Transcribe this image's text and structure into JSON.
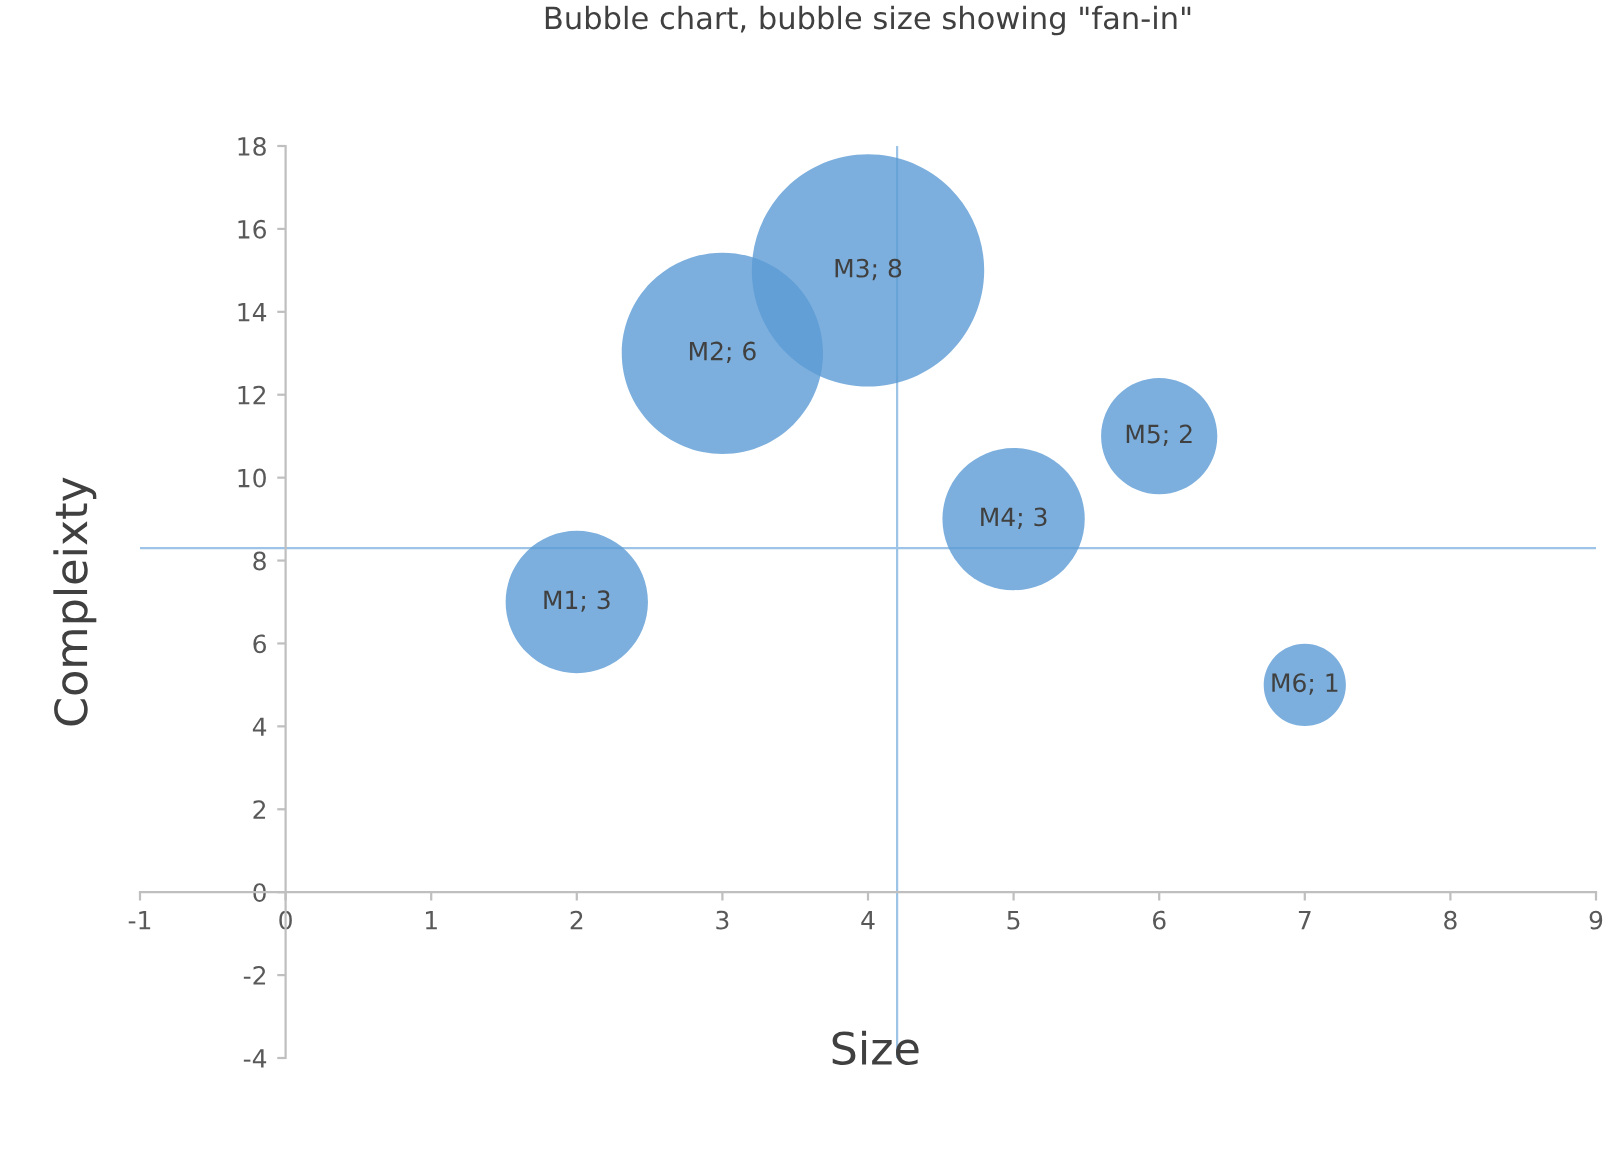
{
  "chart_data": {
    "type": "bubble",
    "title": "Bubble chart, bubble size showing \"fan-in\"",
    "xlabel": "Size",
    "ylabel": "Compleixty",
    "series": [
      {
        "color": "#5b9bd5",
        "x": [
          2,
          3,
          4,
          5,
          6,
          7
        ],
        "values": [
          7,
          13,
          15,
          9,
          11,
          5
        ],
        "sizes": [
          0.375,
          0.75,
          1,
          0.375,
          0.25,
          0.125
        ],
        "value_labels": [
          "M1; 3",
          "M2; 6",
          "M3; 8",
          "M4; 3",
          "M5; 2",
          "M6; 1"
        ]
      }
    ],
    "xlim": [
      -1,
      9
    ],
    "xticks": [
      -1,
      0,
      1,
      2,
      3,
      4,
      5,
      6,
      7,
      8,
      9
    ],
    "ylim": [
      -4,
      18
    ],
    "yticks": [
      -4,
      -2,
      0,
      2,
      4,
      6,
      8,
      10,
      12,
      14,
      16,
      18
    ],
    "ref_lines": [
      {
        "axis": "x",
        "value": 4.2,
        "color": "#9dc3e6"
      },
      {
        "axis": "y",
        "value": 8.3,
        "color": "#9dc3e6"
      }
    ],
    "grid": false,
    "legend": false
  }
}
